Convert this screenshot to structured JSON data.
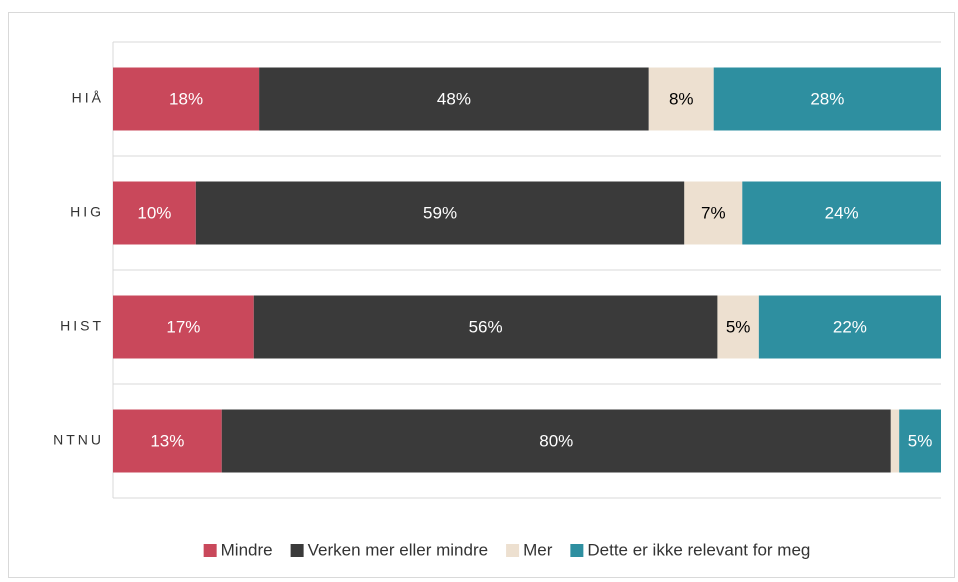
{
  "chart_data": {
    "type": "bar",
    "orientation": "horizontal",
    "stacking": "percent",
    "categories": [
      "HIÅ",
      "HIG",
      "HIST",
      "NTNU"
    ],
    "series": [
      {
        "name": "Mindre",
        "color": "#c9485b",
        "values": [
          18,
          10,
          17,
          13
        ],
        "value_labels": [
          "18%",
          "10%",
          "17%",
          "13%"
        ]
      },
      {
        "name": "Verken mer eller mindre",
        "color": "#3a3a3a",
        "values": [
          48,
          59,
          56,
          80
        ],
        "value_labels": [
          "48%",
          "59%",
          "56%",
          "80%"
        ]
      },
      {
        "name": "Mer",
        "color": "#ede0d0",
        "values": [
          8,
          7,
          5,
          1
        ],
        "value_labels": [
          "8%",
          "7%",
          "5%",
          null
        ]
      },
      {
        "name": "Dette er ikke relevant for meg",
        "color": "#2e8fa0",
        "values": [
          28,
          24,
          22,
          5
        ],
        "value_labels": [
          "28%",
          "24%",
          "22%",
          "5%"
        ]
      }
    ],
    "legend": "bottom"
  }
}
